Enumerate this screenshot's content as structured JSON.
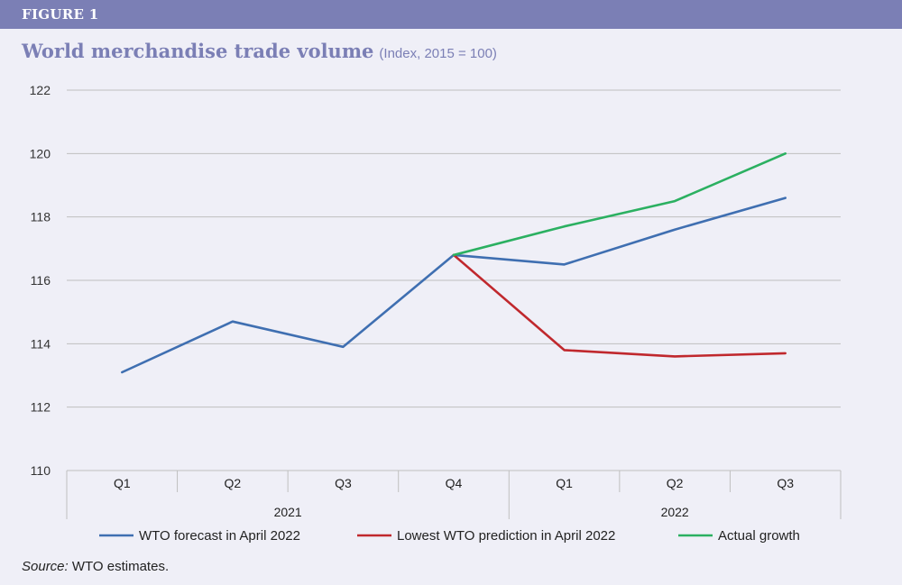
{
  "figure_label": "FIGURE 1",
  "title": "World merchandise trade volume",
  "subtitle": "(Index, 2015 = 100)",
  "source": {
    "label": "Source:",
    "text": " WTO estimates."
  },
  "colors": {
    "banner": "#7b7fb5",
    "forecast": "#3f6fb1",
    "lowest": "#c0282d",
    "actual": "#2bb061",
    "grid": "#bfbfbf"
  },
  "chart_data": {
    "type": "line",
    "categories": [
      "Q1",
      "Q2",
      "Q3",
      "Q4",
      "Q1",
      "Q2",
      "Q3"
    ],
    "years": [
      {
        "label": "2021",
        "from": 0,
        "to": 3
      },
      {
        "label": "2022",
        "from": 4,
        "to": 6
      }
    ],
    "ylim": [
      110,
      122
    ],
    "yticks": [
      110,
      112,
      114,
      116,
      118,
      120,
      122
    ],
    "grid": true,
    "legend_position": "bottom",
    "series": [
      {
        "name": "WTO forecast in April 2022",
        "color": "#3f6fb1",
        "values": [
          113.1,
          114.7,
          113.9,
          116.8,
          116.5,
          117.6,
          118.6
        ]
      },
      {
        "name": "Lowest WTO prediction in April 2022",
        "color": "#c0282d",
        "values": [
          null,
          null,
          null,
          116.8,
          113.8,
          113.6,
          113.7
        ]
      },
      {
        "name": "Actual growth",
        "color": "#2bb061",
        "values": [
          null,
          null,
          null,
          116.8,
          117.7,
          118.5,
          120.0
        ]
      }
    ]
  }
}
